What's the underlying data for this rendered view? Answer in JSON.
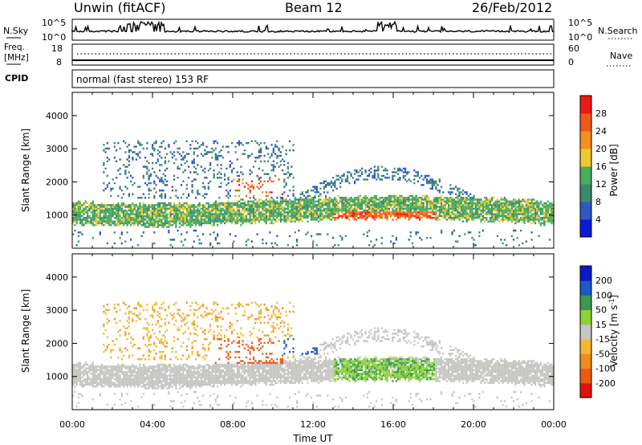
{
  "header": {
    "title": "Unwin (fitACF)",
    "beam": "Beam 12",
    "date": "26/Feb/2012"
  },
  "strip": {
    "nsky_label": "N.Sky",
    "nsky_ticks": [
      "10^5",
      "10^0"
    ],
    "nsearch_label": "N.Search",
    "freq_label_top": "Freq.",
    "freq_label_bottom": "[MHz]",
    "freq_ticks": [
      "18",
      "8"
    ],
    "nave_label": "Nave",
    "nave_ticks": [
      "60",
      "0"
    ],
    "cpid_label": "CPID",
    "cpid_text": "normal (fast stereo) 153 RF"
  },
  "colors": {
    "power": [
      "#0a1ad8",
      "#2e58c4",
      "#3a8a6a",
      "#47ae5e",
      "#f0c830",
      "#f58f22",
      "#f05a18",
      "#ec1a12"
    ],
    "velocity": [
      "#e20f0f",
      "#ee5a12",
      "#f18b1e",
      "#f4b632",
      "#c6c6c2",
      "#8ed23a",
      "#3a9a50",
      "#1a5ac8",
      "#0a1ac8"
    ]
  },
  "chart_data": [
    {
      "type": "heatmap",
      "title": "",
      "xlabel": "Time UT",
      "ylabel": "Slant Range [km]",
      "x_ticks": [
        "00:00",
        "04:00",
        "08:00",
        "12:00",
        "16:00",
        "20:00",
        "00:00"
      ],
      "y_ticks": [
        1000,
        2000,
        3000,
        4000
      ],
      "ylim": [
        0,
        4700
      ],
      "colorbar": {
        "label": "Power [dB]",
        "ticks": [
          4,
          8,
          12,
          16,
          20,
          24,
          28
        ],
        "range": [
          0,
          32
        ]
      },
      "features": [
        {
          "band": "main",
          "start_h": 0.0,
          "end_h": 24.0,
          "range_km": [
            800,
            1400
          ],
          "value": 14
        },
        {
          "band": "enhanced",
          "start_h": 8.0,
          "end_h": 10.5,
          "range_km": [
            1600,
            2100
          ],
          "value": 26
        },
        {
          "band": "enhanced",
          "start_h": 13.0,
          "end_h": 18.0,
          "range_km": [
            850,
            1150
          ],
          "value": 26
        }
      ]
    },
    {
      "type": "heatmap",
      "title": "",
      "xlabel": "Time UT",
      "ylabel": "Slant Range [km]",
      "x_ticks": [
        "00:00",
        "04:00",
        "08:00",
        "12:00",
        "16:00",
        "20:00",
        "00:00"
      ],
      "y_ticks": [
        1000,
        2000,
        3000,
        4000
      ],
      "ylim": [
        0,
        4700
      ],
      "colorbar": {
        "label": "Velocity [m s",
        "label_sup": "-1",
        "label_end": "]",
        "ticks": [
          "200",
          "100",
          "50",
          "15",
          "-15",
          "-50",
          "-100",
          "-200"
        ]
      },
      "features": [
        {
          "band": "ground-scatter",
          "start_h": 0.0,
          "end_h": 24.0,
          "range_km": [
            1000,
            1400
          ],
          "value": 0
        },
        {
          "band": "westward",
          "start_h": 7.0,
          "end_h": 10.5,
          "range_km": [
            1400,
            2200
          ],
          "value": -150
        },
        {
          "band": "eastward",
          "start_h": 10.5,
          "end_h": 12.2,
          "range_km": [
            1700,
            2200
          ],
          "value": 150
        },
        {
          "band": "eastward",
          "start_h": 13.0,
          "end_h": 18.0,
          "range_km": [
            850,
            1600
          ],
          "value": 40
        }
      ]
    }
  ]
}
